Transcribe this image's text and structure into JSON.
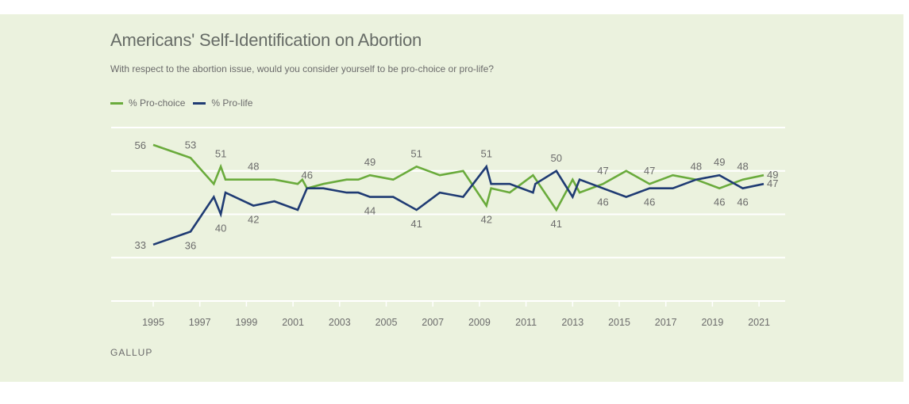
{
  "chart_data": {
    "type": "line",
    "title": "Americans' Self-Identification on Abortion",
    "subtitle": "With respect to the abortion issue, would you consider yourself to be pro-choice or pro-life?",
    "source": "GALLUP",
    "xlabel": "",
    "ylabel": "",
    "xlim": [
      1994.2,
      2022.1
    ],
    "ylim": [
      20,
      60
    ],
    "yticks": [
      20,
      30,
      40,
      50,
      60
    ],
    "grid": true,
    "legend_position": "top-left",
    "xticks": [
      1995,
      1997,
      1999,
      2001,
      2003,
      2005,
      2007,
      2009,
      2011,
      2013,
      2015,
      2017,
      2019,
      2021
    ],
    "series": [
      {
        "name": "% Pro-choice",
        "color": "#6aab3c",
        "points": [
          [
            1995.0,
            56
          ],
          [
            1996.6,
            53
          ],
          [
            1997.6,
            47
          ],
          [
            1997.9,
            51
          ],
          [
            1998.1,
            48
          ],
          [
            1999.3,
            48
          ],
          [
            2000.2,
            48
          ],
          [
            2001.2,
            47
          ],
          [
            2001.4,
            48
          ],
          [
            2001.6,
            46
          ],
          [
            2002.3,
            47
          ],
          [
            2003.3,
            48
          ],
          [
            2003.8,
            48
          ],
          [
            2004.3,
            49
          ],
          [
            2005.3,
            48
          ],
          [
            2006.3,
            51
          ],
          [
            2007.3,
            49
          ],
          [
            2008.3,
            50
          ],
          [
            2009.3,
            42
          ],
          [
            2009.5,
            46
          ],
          [
            2010.3,
            45
          ],
          [
            2011.3,
            49
          ],
          [
            2012.3,
            41
          ],
          [
            2013.0,
            48
          ],
          [
            2013.3,
            45
          ],
          [
            2014.3,
            47
          ],
          [
            2015.3,
            50
          ],
          [
            2016.3,
            47
          ],
          [
            2017.3,
            49
          ],
          [
            2018.3,
            48
          ],
          [
            2019.3,
            46
          ],
          [
            2020.3,
            48
          ],
          [
            2021.2,
            49
          ]
        ]
      },
      {
        "name": "% Pro-life",
        "color": "#1f3b73",
        "points": [
          [
            1995.0,
            33
          ],
          [
            1996.6,
            36
          ],
          [
            1997.6,
            44
          ],
          [
            1997.9,
            40
          ],
          [
            1998.1,
            45
          ],
          [
            1999.3,
            42
          ],
          [
            2000.2,
            43
          ],
          [
            2001.2,
            41
          ],
          [
            2001.6,
            46
          ],
          [
            2002.3,
            46
          ],
          [
            2003.3,
            45
          ],
          [
            2003.8,
            45
          ],
          [
            2004.3,
            44
          ],
          [
            2005.3,
            44
          ],
          [
            2006.3,
            41
          ],
          [
            2007.3,
            45
          ],
          [
            2008.3,
            44
          ],
          [
            2009.3,
            51
          ],
          [
            2009.5,
            47
          ],
          [
            2010.3,
            47
          ],
          [
            2011.3,
            45
          ],
          [
            2011.4,
            47
          ],
          [
            2012.3,
            50
          ],
          [
            2013.0,
            44
          ],
          [
            2013.3,
            48
          ],
          [
            2014.3,
            46
          ],
          [
            2015.3,
            44
          ],
          [
            2016.3,
            46
          ],
          [
            2017.3,
            46
          ],
          [
            2018.3,
            48
          ],
          [
            2019.3,
            49
          ],
          [
            2020.3,
            46
          ],
          [
            2021.2,
            47
          ]
        ]
      }
    ],
    "annotations": [
      {
        "series": "% Pro-choice",
        "x": 1995.0,
        "value": 56,
        "text": "56",
        "pos": "left"
      },
      {
        "series": "% Pro-choice",
        "x": 1996.6,
        "value": 53,
        "text": "53",
        "pos": "above"
      },
      {
        "series": "% Pro-choice",
        "x": 1997.9,
        "value": 51,
        "text": "51",
        "pos": "above"
      },
      {
        "series": "% Pro-choice",
        "x": 1999.3,
        "value": 48,
        "text": "48",
        "pos": "above"
      },
      {
        "series": "% Pro-choice",
        "x": 2001.6,
        "value": 46,
        "text": "46",
        "pos": "above"
      },
      {
        "series": "% Pro-choice",
        "x": 2004.3,
        "value": 49,
        "text": "49",
        "pos": "above"
      },
      {
        "series": "% Pro-choice",
        "x": 2006.3,
        "value": 51,
        "text": "51",
        "pos": "above"
      },
      {
        "series": "% Pro-life",
        "x": 2009.3,
        "value": 51,
        "text": "51",
        "pos": "above"
      },
      {
        "series": "% Pro-life",
        "x": 2012.3,
        "value": 50,
        "text": "50",
        "pos": "above"
      },
      {
        "series": "% Pro-choice",
        "x": 2014.3,
        "value": 47,
        "text": "47",
        "pos": "above"
      },
      {
        "series": "% Pro-choice",
        "x": 2016.3,
        "value": 47,
        "text": "47",
        "pos": "above"
      },
      {
        "series": "% Pro-choice",
        "x": 2018.3,
        "value": 48,
        "text": "48",
        "pos": "above"
      },
      {
        "series": "% Pro-life",
        "x": 2019.3,
        "value": 49,
        "text": "49",
        "pos": "above"
      },
      {
        "series": "% Pro-choice",
        "x": 2020.3,
        "value": 48,
        "text": "48",
        "pos": "above"
      },
      {
        "series": "% Pro-choice",
        "x": 2021.2,
        "value": 49,
        "text": "49",
        "pos": "right"
      },
      {
        "series": "% Pro-life",
        "x": 1995.0,
        "value": 33,
        "text": "33",
        "pos": "left"
      },
      {
        "series": "% Pro-life",
        "x": 1996.6,
        "value": 36,
        "text": "36",
        "pos": "below"
      },
      {
        "series": "% Pro-life",
        "x": 1997.9,
        "value": 40,
        "text": "40",
        "pos": "below"
      },
      {
        "series": "% Pro-life",
        "x": 1999.3,
        "value": 42,
        "text": "42",
        "pos": "below"
      },
      {
        "series": "% Pro-life",
        "x": 2004.3,
        "value": 44,
        "text": "44",
        "pos": "below"
      },
      {
        "series": "% Pro-life",
        "x": 2006.3,
        "value": 41,
        "text": "41",
        "pos": "below"
      },
      {
        "series": "% Pro-choice",
        "x": 2009.3,
        "value": 42,
        "text": "42",
        "pos": "below"
      },
      {
        "series": "% Pro-choice",
        "x": 2012.3,
        "value": 41,
        "text": "41",
        "pos": "below"
      },
      {
        "series": "% Pro-life",
        "x": 2014.3,
        "value": 46,
        "text": "46",
        "pos": "below"
      },
      {
        "series": "% Pro-life",
        "x": 2016.3,
        "value": 46,
        "text": "46",
        "pos": "below"
      },
      {
        "series": "% Pro-choice",
        "x": 2019.3,
        "value": 46,
        "text": "46",
        "pos": "below"
      },
      {
        "series": "% Pro-life",
        "x": 2020.3,
        "value": 46,
        "text": "46",
        "pos": "below"
      },
      {
        "series": "% Pro-life",
        "x": 2021.2,
        "value": 47,
        "text": "47",
        "pos": "right"
      }
    ]
  },
  "colors": {
    "background": "#ebf2de",
    "pro_choice": "#6aab3c",
    "pro_life": "#1f3b73",
    "gridline": "#ffffff",
    "text": "#6b6b6b"
  }
}
